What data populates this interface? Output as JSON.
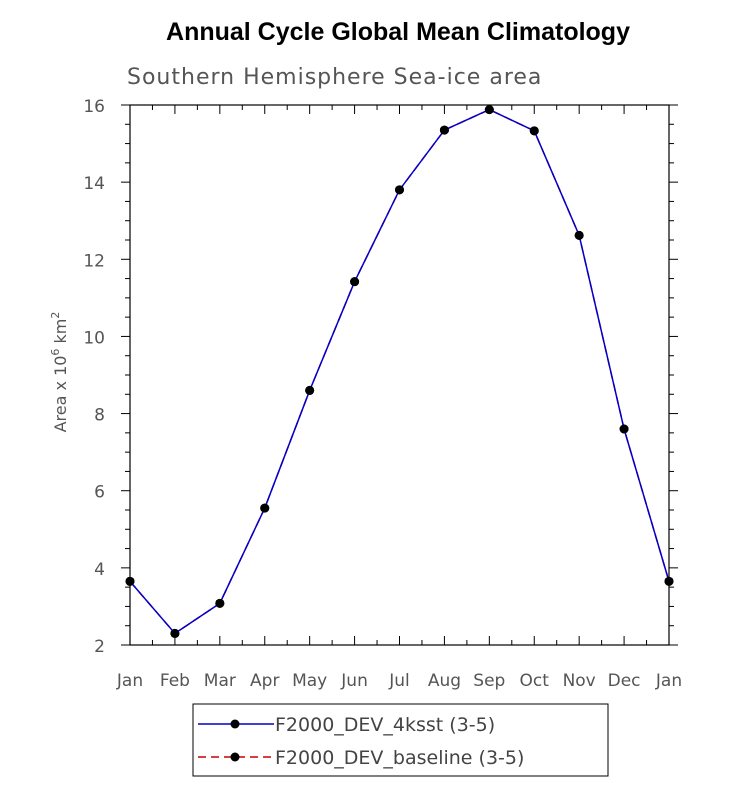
{
  "title": "Annual Cycle Global Mean Climatology",
  "chart_data": {
    "type": "line",
    "title": "Southern Hemisphere Sea-ice area",
    "xlabel": "",
    "ylabel": "Area x 10",
    "ylabel_exp": "6",
    "ylabel_unit": "km",
    "ylabel_unit_exp": "2",
    "categories": [
      "Jan",
      "Feb",
      "Mar",
      "Apr",
      "May",
      "Jun",
      "Jul",
      "Aug",
      "Sep",
      "Oct",
      "Nov",
      "Dec",
      "Jan"
    ],
    "ylim": [
      2,
      16
    ],
    "yticks": [
      2,
      4,
      6,
      8,
      10,
      12,
      14,
      16
    ],
    "series": [
      {
        "name": "F2000_DEV_4ksst (3-5)",
        "color": "#0000cc",
        "dash": "solid",
        "marker": "filled-circle",
        "values": [
          3.65,
          2.3,
          3.08,
          5.55,
          8.6,
          11.42,
          13.8,
          15.35,
          15.88,
          15.33,
          12.62,
          7.6,
          3.65
        ]
      },
      {
        "name": "F2000_DEV_baseline (3-5)",
        "color": "#cc0000",
        "dash": "dashed",
        "marker": "filled-circle",
        "values": [
          3.65,
          2.3,
          3.08,
          5.55,
          8.6,
          11.42,
          13.8,
          15.35,
          15.88,
          15.33,
          12.62,
          7.6,
          3.65
        ]
      }
    ],
    "grid": false,
    "legend_position": "bottom"
  }
}
